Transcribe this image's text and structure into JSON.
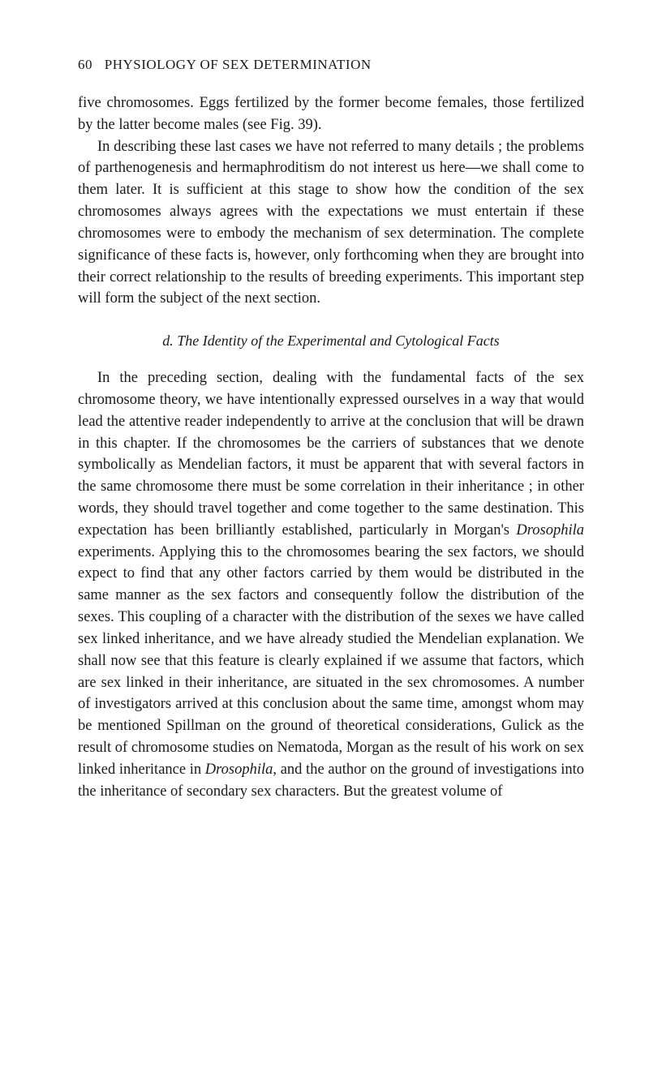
{
  "header": {
    "page_number": "60",
    "running_title": "PHYSIOLOGY OF SEX DETERMINATION"
  },
  "p1": "five chromosomes. Eggs fertilized by the former become females, those fertilized by the latter become males (see Fig. 39).",
  "p2": "In describing these last cases we have not referred to many details ; the problems of parthenogenesis and hermaphroditism do not interest us here—we shall come to them later. It is sufficient at this stage to show how the condition of the sex chromosomes always agrees with the expectations we must entertain if these chromosomes were to embody the mechanism of sex determination. The complete significance of these facts is, however, only forthcoming when they are brought into their correct relationship to the results of breeding experiments. This important step will form the subject of the next section.",
  "section_heading": "d. The Identity of the Experimental and Cytological Facts",
  "p3_a": "In the preceding section, dealing with the fundamental facts of the sex chromosome theory, we have intentionally expressed ourselves in a way that would lead the attentive reader independently to arrive at the conclusion that will be drawn in this chapter. If the chromosomes be the carriers of substances that we denote symbolically as Mendelian factors, it must be apparent that with several factors in the same chromosome there must be some correlation in their inheritance ; in other words, they should travel together and come together to the same destination. This expectation has been brilliantly established, particularly in Morgan's ",
  "p3_b": "Drosophila",
  "p3_c": " experiments. Applying this to the chromosomes bearing the sex factors, we should expect to find that any other factors carried by them would be distributed in the same manner as the sex factors and consequently follow the distribution of the sexes. This coupling of a character with the distribution of the sexes we have called sex linked inheritance, and we have already studied the Mendelian explanation. We shall now see that this feature is clearly explained if we assume that factors, which are sex linked in their inheritance, are situated in the sex chromosomes. A number of investigators arrived at this conclusion about the same time, amongst whom may be mentioned Spillman on the ground of theoretical considerations, Gulick as the result of chromosome studies on Nematoda, Morgan as the result of his work on sex linked inheritance in ",
  "p3_d": "Drosophila",
  "p3_e": ", and the author on the ground of investigations into the inheritance of secondary sex characters. But the greatest volume of"
}
